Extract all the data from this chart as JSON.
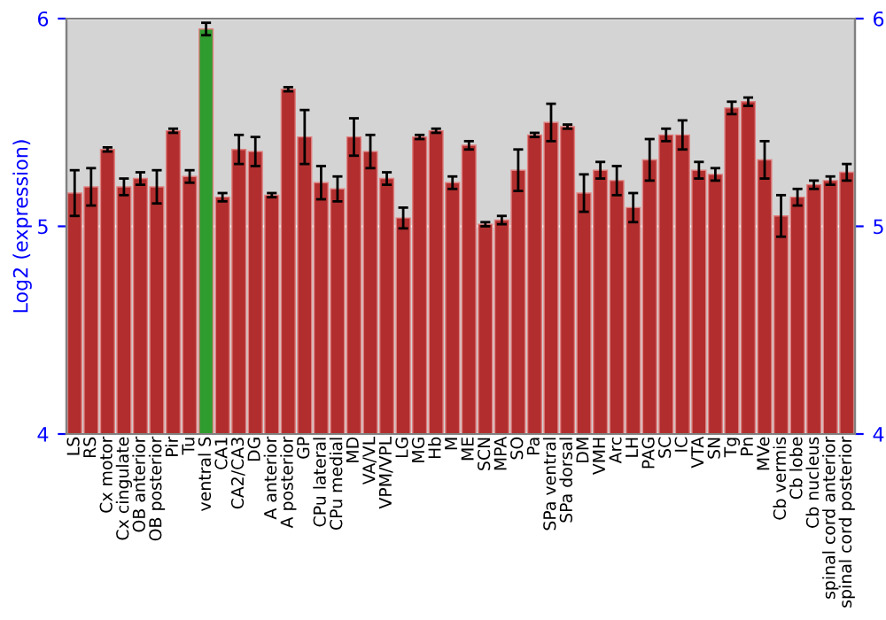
{
  "chart_data": {
    "type": "bar",
    "ylabel": "Log2 (expression)",
    "categories": [
      "LS",
      "RS",
      "Cx motor",
      "Cx cingulate",
      "OB anterior",
      "OB posterior",
      "Pir",
      "Tu",
      "ventral S",
      "CA1",
      "CA2/CA3",
      "DG",
      "A anterior",
      "A posterior",
      "GP",
      "CPu lateral",
      "CPu medial",
      "MD",
      "VA/VL",
      "VPM/VPL",
      "LG",
      "MG",
      "Hb",
      "M",
      "ME",
      "SCN",
      "MPA",
      "SO",
      "Pa",
      "SPa ventral",
      "SPa dorsal",
      "DM",
      "VMH",
      "Arc",
      "LH",
      "PAG",
      "SC",
      "IC",
      "VTA",
      "SN",
      "Tg",
      "Pn",
      "MVe",
      "Cb vermis",
      "Cb lobe",
      "Cb nucleus",
      "spinal cord anterior",
      "spinal cord posterior"
    ],
    "values": [
      5.16,
      5.19,
      5.37,
      5.19,
      5.23,
      5.19,
      5.46,
      5.24,
      5.95,
      5.14,
      5.37,
      5.36,
      5.15,
      5.66,
      5.43,
      5.21,
      5.18,
      5.43,
      5.36,
      5.23,
      5.04,
      5.43,
      5.46,
      5.21,
      5.39,
      5.01,
      5.03,
      5.27,
      5.44,
      5.5,
      5.48,
      5.16,
      5.27,
      5.22,
      5.09,
      5.32,
      5.44,
      5.44,
      5.27,
      5.25,
      5.57,
      5.6,
      5.32,
      5.05,
      5.14,
      5.2,
      5.22,
      5.26
    ],
    "errors": [
      0.11,
      0.09,
      0.01,
      0.04,
      0.03,
      0.08,
      0.01,
      0.03,
      0.03,
      0.02,
      0.07,
      0.07,
      0.01,
      0.01,
      0.13,
      0.08,
      0.06,
      0.09,
      0.08,
      0.03,
      0.05,
      0.01,
      0.01,
      0.03,
      0.02,
      0.01,
      0.02,
      0.1,
      0.01,
      0.09,
      0.01,
      0.09,
      0.04,
      0.07,
      0.07,
      0.1,
      0.03,
      0.07,
      0.04,
      0.03,
      0.03,
      0.02,
      0.09,
      0.1,
      0.04,
      0.02,
      0.02,
      0.04
    ],
    "colors": [
      "#b22e2e",
      "#b22e2e",
      "#b22e2e",
      "#b22e2e",
      "#b22e2e",
      "#b22e2e",
      "#b22e2e",
      "#b22e2e",
      "#2f9c2f",
      "#b22e2e",
      "#b22e2e",
      "#b22e2e",
      "#b22e2e",
      "#b22e2e",
      "#b22e2e",
      "#b22e2e",
      "#b22e2e",
      "#b22e2e",
      "#b22e2e",
      "#b22e2e",
      "#b22e2e",
      "#b22e2e",
      "#b22e2e",
      "#b22e2e",
      "#b22e2e",
      "#b22e2e",
      "#b22e2e",
      "#b22e2e",
      "#b22e2e",
      "#b22e2e",
      "#b22e2e",
      "#b22e2e",
      "#b22e2e",
      "#b22e2e",
      "#b22e2e",
      "#b22e2e",
      "#b22e2e",
      "#b22e2e",
      "#b22e2e",
      "#b22e2e",
      "#b22e2e",
      "#b22e2e",
      "#b22e2e",
      "#b22e2e",
      "#b22e2e",
      "#b22e2e",
      "#b22e2e",
      "#b22e2e"
    ],
    "ylim": [
      4,
      6
    ],
    "yticks": [
      4,
      5,
      6
    ],
    "y2lim": [
      4,
      6
    ],
    "y2ticks": [
      4,
      5,
      6
    ],
    "grid": "y"
  }
}
